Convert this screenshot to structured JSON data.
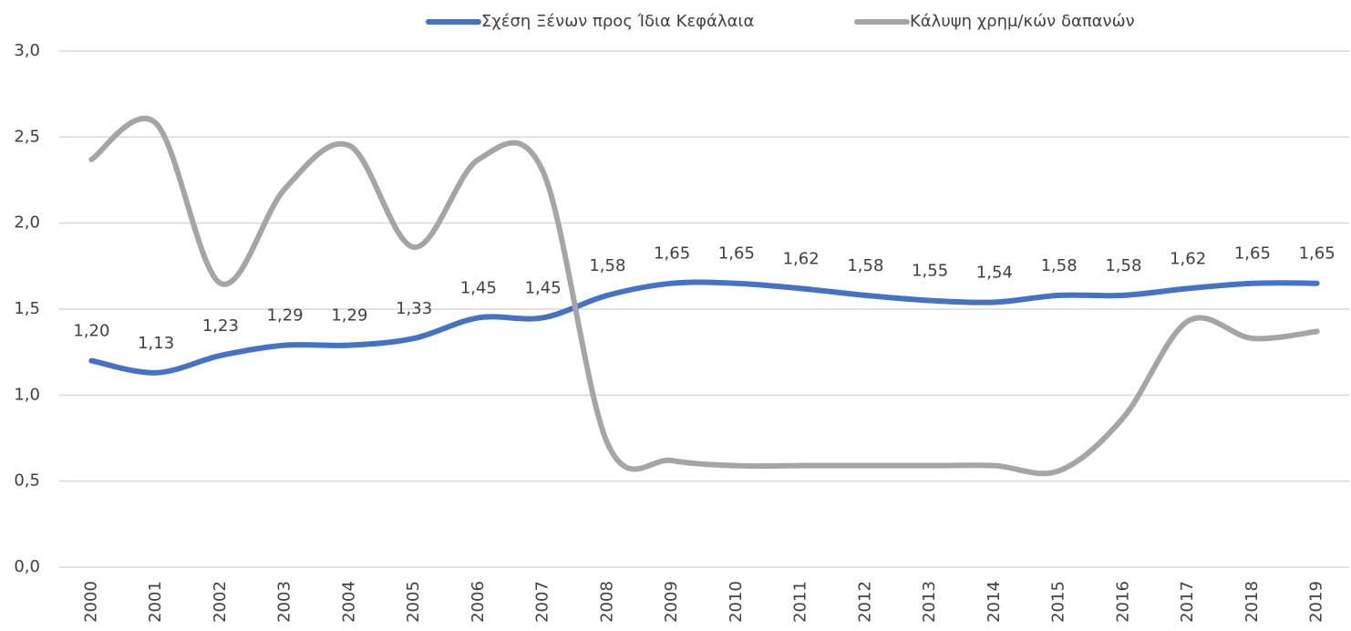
{
  "chart_data": {
    "type": "line",
    "categories": [
      "2000",
      "2001",
      "2002",
      "2003",
      "2004",
      "2005",
      "2006",
      "2007",
      "2008",
      "2009",
      "2010",
      "2011",
      "2012",
      "2013",
      "2014",
      "2015",
      "2016",
      "2017",
      "2018",
      "2019"
    ],
    "series": [
      {
        "name": "Σχέση Ξένων προς Ίδια Κεφάλαια",
        "color": "#4472c4",
        "values": [
          1.2,
          1.13,
          1.23,
          1.29,
          1.29,
          1.33,
          1.45,
          1.45,
          1.58,
          1.65,
          1.65,
          1.62,
          1.58,
          1.55,
          1.54,
          1.58,
          1.58,
          1.62,
          1.65,
          1.65
        ],
        "value_labels": [
          "1,20",
          "1,13",
          "1,23",
          "1,29",
          "1,29",
          "1,33",
          "1,45",
          "1,45",
          "1,58",
          "1,65",
          "1,65",
          "1,62",
          "1,58",
          "1,55",
          "1,54",
          "1,58",
          "1,58",
          "1,62",
          "1,65",
          "1,65"
        ]
      },
      {
        "name": "Κάλυψη χρημ/κών δαπανών",
        "color": "#a5a5a5",
        "values": [
          2.37,
          2.58,
          1.65,
          2.2,
          2.45,
          1.86,
          2.37,
          2.3,
          0.72,
          0.62,
          0.59,
          0.59,
          0.59,
          0.59,
          0.59,
          0.56,
          0.87,
          1.43,
          1.33,
          1.37
        ]
      }
    ],
    "ylim": [
      0,
      3
    ],
    "yticks": [
      {
        "value": 0,
        "label": "0,0"
      },
      {
        "value": 0.5,
        "label": "0,5"
      },
      {
        "value": 1,
        "label": "1,0"
      },
      {
        "value": 1.5,
        "label": "1,5"
      },
      {
        "value": 2,
        "label": "2,0"
      },
      {
        "value": 2.5,
        "label": "2,5"
      },
      {
        "value": 3,
        "label": "3,0"
      }
    ],
    "grid": true,
    "legend": "top",
    "smooth": true
  }
}
